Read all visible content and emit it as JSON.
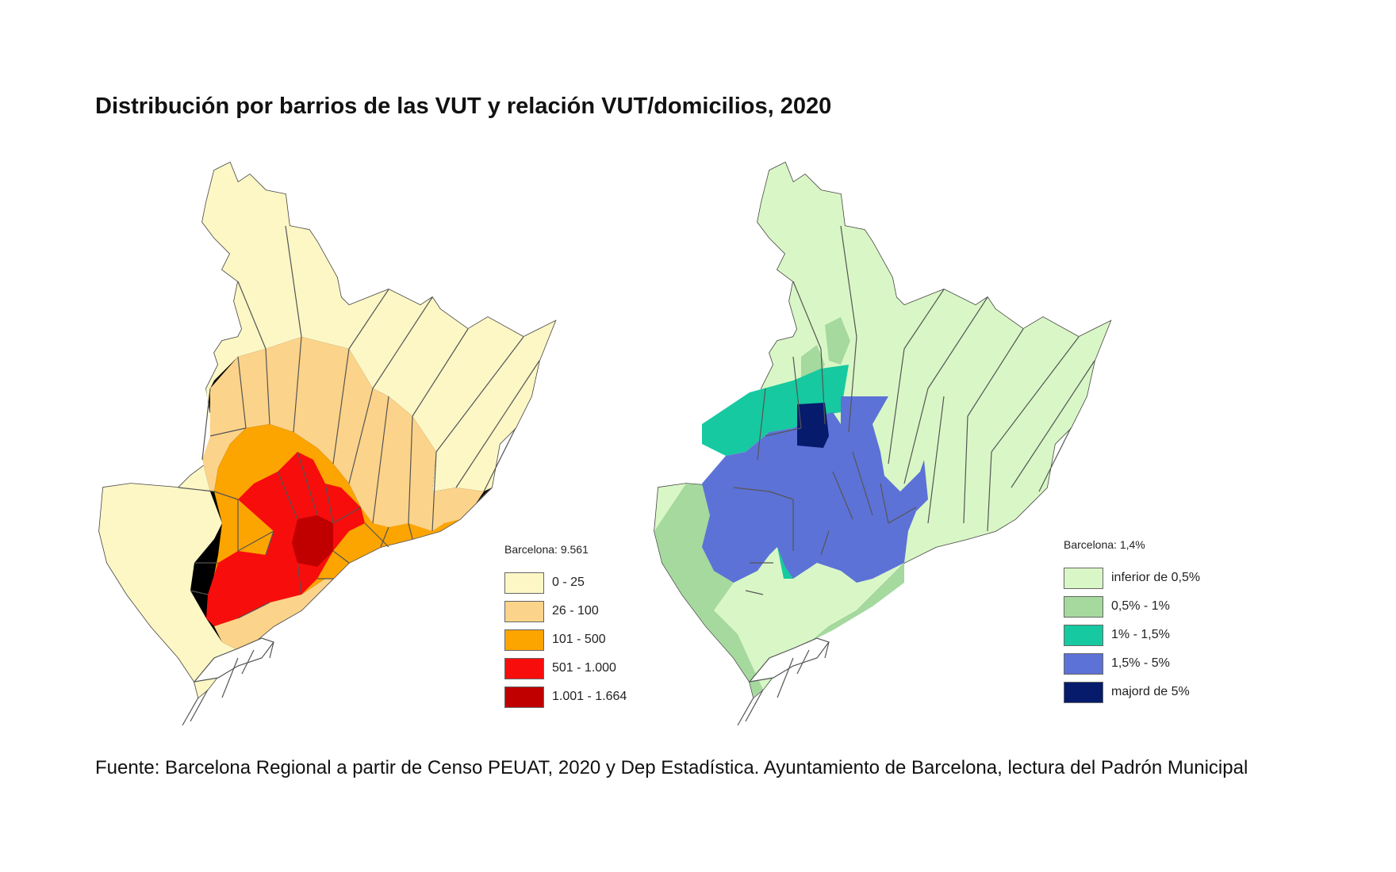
{
  "title": "Distribución por barrios de las VUT y relación VUT/domicilios, 2020",
  "source": "Fuente: Barcelona Regional a partir de Censo PEUAT, 2020 y Dep Estadística. Ayuntamiento de Barcelona, lectura del Padrón Municipal",
  "maps": {
    "left": {
      "legend_title": "Barcelona: 9.561",
      "classes": [
        {
          "label": "0 - 25",
          "color": "#fcf7c5"
        },
        {
          "label": "26 - 100",
          "color": "#fcd38a"
        },
        {
          "label": "101 - 500",
          "color": "#fca400"
        },
        {
          "label": "501 - 1.000",
          "color": "#f70d0c"
        },
        {
          "label": "1.001 - 1.664",
          "color": "#c00000"
        }
      ]
    },
    "right": {
      "legend_title": "Barcelona: 1,4%",
      "classes": [
        {
          "label": "inferior de 0,5%",
          "color": "#d9f7c6"
        },
        {
          "label": "0,5% - 1%",
          "color": "#a5d99e"
        },
        {
          "label": "1% - 1,5%",
          "color": "#17c9a0"
        },
        {
          "label": "1,5% - 5%",
          "color": "#5d72d6"
        },
        {
          "label": "majord de 5%",
          "color": "#061b6c"
        }
      ]
    }
  }
}
